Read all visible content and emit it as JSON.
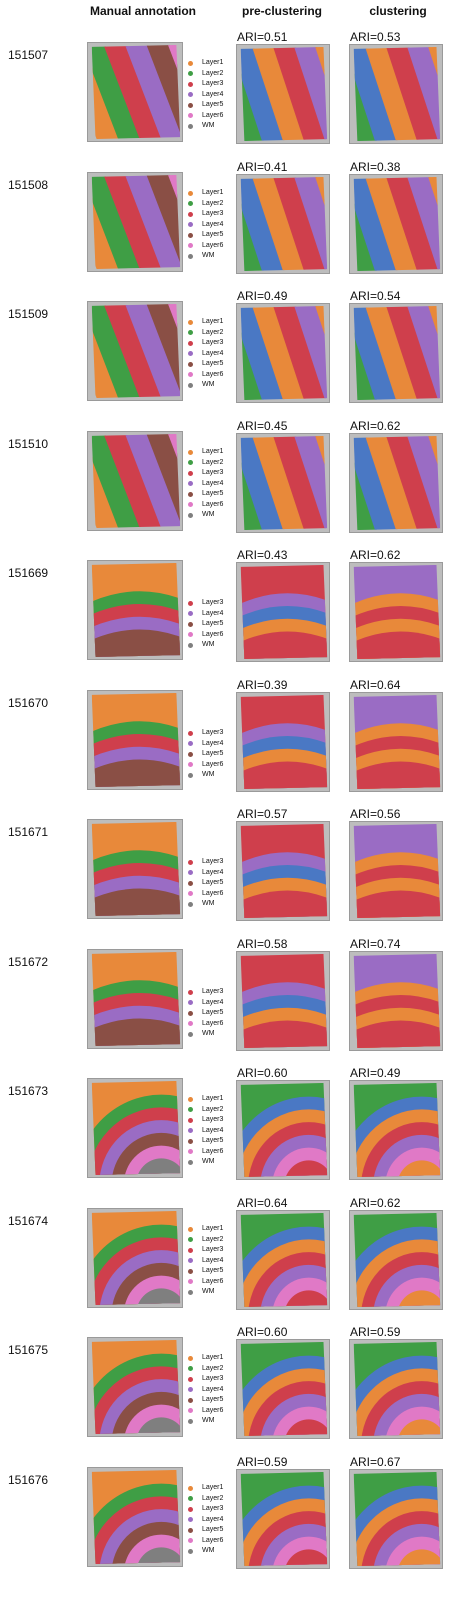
{
  "headers": {
    "manual": "Manual annotation",
    "pre": "pre-clustering",
    "post": "clustering"
  },
  "palette": {
    "Layer1": "#e8893a",
    "Layer2": "#3f9e45",
    "Layer3": "#cf3f4c",
    "Layer4": "#9a6cc4",
    "Layer5": "#8a4f45",
    "Layer6": "#e079c6",
    "WM": "#7f7f7f",
    "blue": "#4a78c4",
    "background": "#bdbdbd"
  },
  "samples": [
    {
      "id": "151507",
      "ari_pre": "ARI=0.51",
      "ari_post": "ARI=0.53",
      "legend": [
        "Layer1",
        "Layer2",
        "Layer3",
        "Layer4",
        "Layer5",
        "Layer6",
        "WM"
      ]
    },
    {
      "id": "151508",
      "ari_pre": "ARI=0.41",
      "ari_post": "ARI=0.38",
      "legend": [
        "Layer1",
        "Layer2",
        "Layer3",
        "Layer4",
        "Layer5",
        "Layer6",
        "WM"
      ]
    },
    {
      "id": "151509",
      "ari_pre": "ARI=0.49",
      "ari_post": "ARI=0.54",
      "legend": [
        "Layer1",
        "Layer2",
        "Layer3",
        "Layer4",
        "Layer5",
        "Layer6",
        "WM"
      ]
    },
    {
      "id": "151510",
      "ari_pre": "ARI=0.45",
      "ari_post": "ARI=0.62",
      "legend": [
        "Layer1",
        "Layer2",
        "Layer3",
        "Layer4",
        "Layer5",
        "Layer6",
        "WM"
      ]
    },
    {
      "id": "151669",
      "ari_pre": "ARI=0.43",
      "ari_post": "ARI=0.62",
      "legend": [
        "Layer3",
        "Layer4",
        "Layer5",
        "Layer6",
        "WM"
      ]
    },
    {
      "id": "151670",
      "ari_pre": "ARI=0.39",
      "ari_post": "ARI=0.64",
      "legend": [
        "Layer3",
        "Layer4",
        "Layer5",
        "Layer6",
        "WM"
      ]
    },
    {
      "id": "151671",
      "ari_pre": "ARI=0.57",
      "ari_post": "ARI=0.56",
      "legend": [
        "Layer3",
        "Layer4",
        "Layer5",
        "Layer6",
        "WM"
      ]
    },
    {
      "id": "151672",
      "ari_pre": "ARI=0.58",
      "ari_post": "ARI=0.74",
      "legend": [
        "Layer3",
        "Layer4",
        "Layer5",
        "Layer6",
        "WM"
      ]
    },
    {
      "id": "151673",
      "ari_pre": "ARI=0.60",
      "ari_post": "ARI=0.49",
      "legend": [
        "Layer1",
        "Layer2",
        "Layer3",
        "Layer4",
        "Layer5",
        "Layer6",
        "WM"
      ]
    },
    {
      "id": "151674",
      "ari_pre": "ARI=0.64",
      "ari_post": "ARI=0.62",
      "legend": [
        "Layer1",
        "Layer2",
        "Layer3",
        "Layer4",
        "Layer5",
        "Layer6",
        "WM"
      ]
    },
    {
      "id": "151675",
      "ari_pre": "ARI=0.60",
      "ari_post": "ARI=0.59",
      "legend": [
        "Layer1",
        "Layer2",
        "Layer3",
        "Layer4",
        "Layer5",
        "Layer6",
        "WM"
      ]
    },
    {
      "id": "151676",
      "ari_pre": "ARI=0.59",
      "ari_post": "ARI=0.67",
      "legend": [
        "Layer1",
        "Layer2",
        "Layer3",
        "Layer4",
        "Layer5",
        "Layer6",
        "WM"
      ]
    }
  ]
}
